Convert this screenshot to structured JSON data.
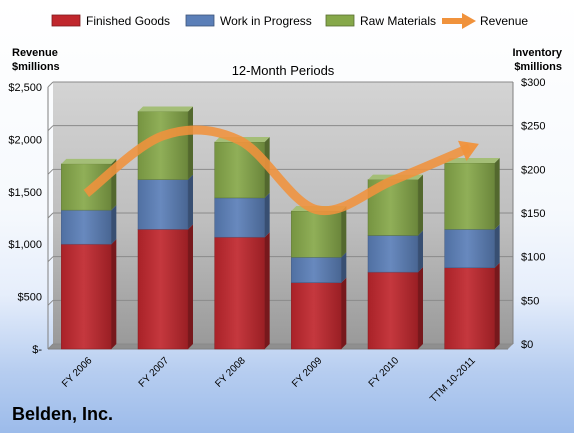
{
  "chart_data": {
    "type": "bar",
    "stacked": true,
    "title": "12-Month Periods",
    "company": "Belden, Inc.",
    "left_axis_label_lines": [
      "Revenue",
      "$millions"
    ],
    "right_axis_label_lines": [
      "Inventory",
      "$millions"
    ],
    "categories": [
      "FY 2006",
      "FY 2007",
      "FY 2008",
      "FY 2009",
      "FY 2010",
      "TTM 10-2011"
    ],
    "y_left": {
      "min": 0,
      "max": 2500,
      "ticks": [
        0,
        500,
        1000,
        1500,
        2000,
        2500
      ],
      "tick_labels": [
        "$-",
        "$500",
        "$1,000",
        "$1,500",
        "$2,000",
        "$2,500"
      ]
    },
    "y_right": {
      "min": 0,
      "max": 300,
      "ticks": [
        0,
        50,
        100,
        150,
        200,
        250,
        300
      ],
      "tick_labels": [
        "$0",
        "$50",
        "$100",
        "$150",
        "$200",
        "$250",
        "$300"
      ]
    },
    "grid": true,
    "legend_position": "top",
    "series": [
      {
        "name": "Finished Goods",
        "kind": "bar",
        "axis": "right",
        "color": "#c0272d",
        "values": [
          120,
          137,
          128,
          76,
          88,
          93
        ]
      },
      {
        "name": "Work in Progress",
        "kind": "bar",
        "axis": "right",
        "color": "#5b7fb8",
        "values": [
          39,
          57,
          45,
          29,
          42,
          44
        ]
      },
      {
        "name": "Raw Materials",
        "kind": "bar",
        "axis": "right",
        "color": "#86a84a",
        "values": [
          53,
          78,
          64,
          53,
          64,
          76
        ]
      },
      {
        "name": "Revenue",
        "kind": "line",
        "axis": "left",
        "color": "#f0923c",
        "values": [
          1485,
          2035,
          1990,
          1330,
          1610,
          1920
        ]
      }
    ]
  }
}
